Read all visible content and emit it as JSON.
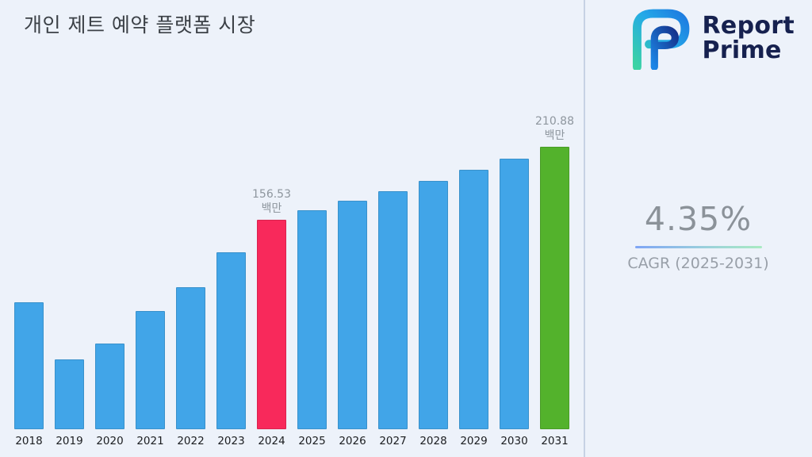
{
  "title": "개인 제트 예약 플랫폼 시장",
  "brand": {
    "line1": "Report",
    "line2": "Prime",
    "icon": "report-prime-logo"
  },
  "panel": {
    "cagr_value": "4.35%",
    "cagr_label": "CAGR (2025-2031)"
  },
  "chart_data": {
    "type": "bar",
    "title": "개인 제트 예약 플랫폼 시장",
    "unit": "백만",
    "categories": [
      "2018",
      "2019",
      "2020",
      "2021",
      "2022",
      "2023",
      "2024",
      "2025",
      "2026",
      "2027",
      "2028",
      "2029",
      "2030",
      "2031"
    ],
    "values": [
      95,
      52,
      64,
      88,
      106,
      132,
      156.53,
      163.34,
      170.45,
      177.86,
      185.6,
      193.67,
      202.1,
      210.88
    ],
    "annotations": [
      {
        "category": "2024",
        "lines": [
          "156.53",
          "백만"
        ]
      },
      {
        "category": "2031",
        "lines": [
          "210.88",
          "백만"
        ]
      }
    ],
    "colors": {
      "default": "#41A5E8",
      "2024": "#F8295B",
      "2031": "#53B22C"
    },
    "ylim": [
      0,
      211
    ],
    "grid": false,
    "legend": false
  }
}
